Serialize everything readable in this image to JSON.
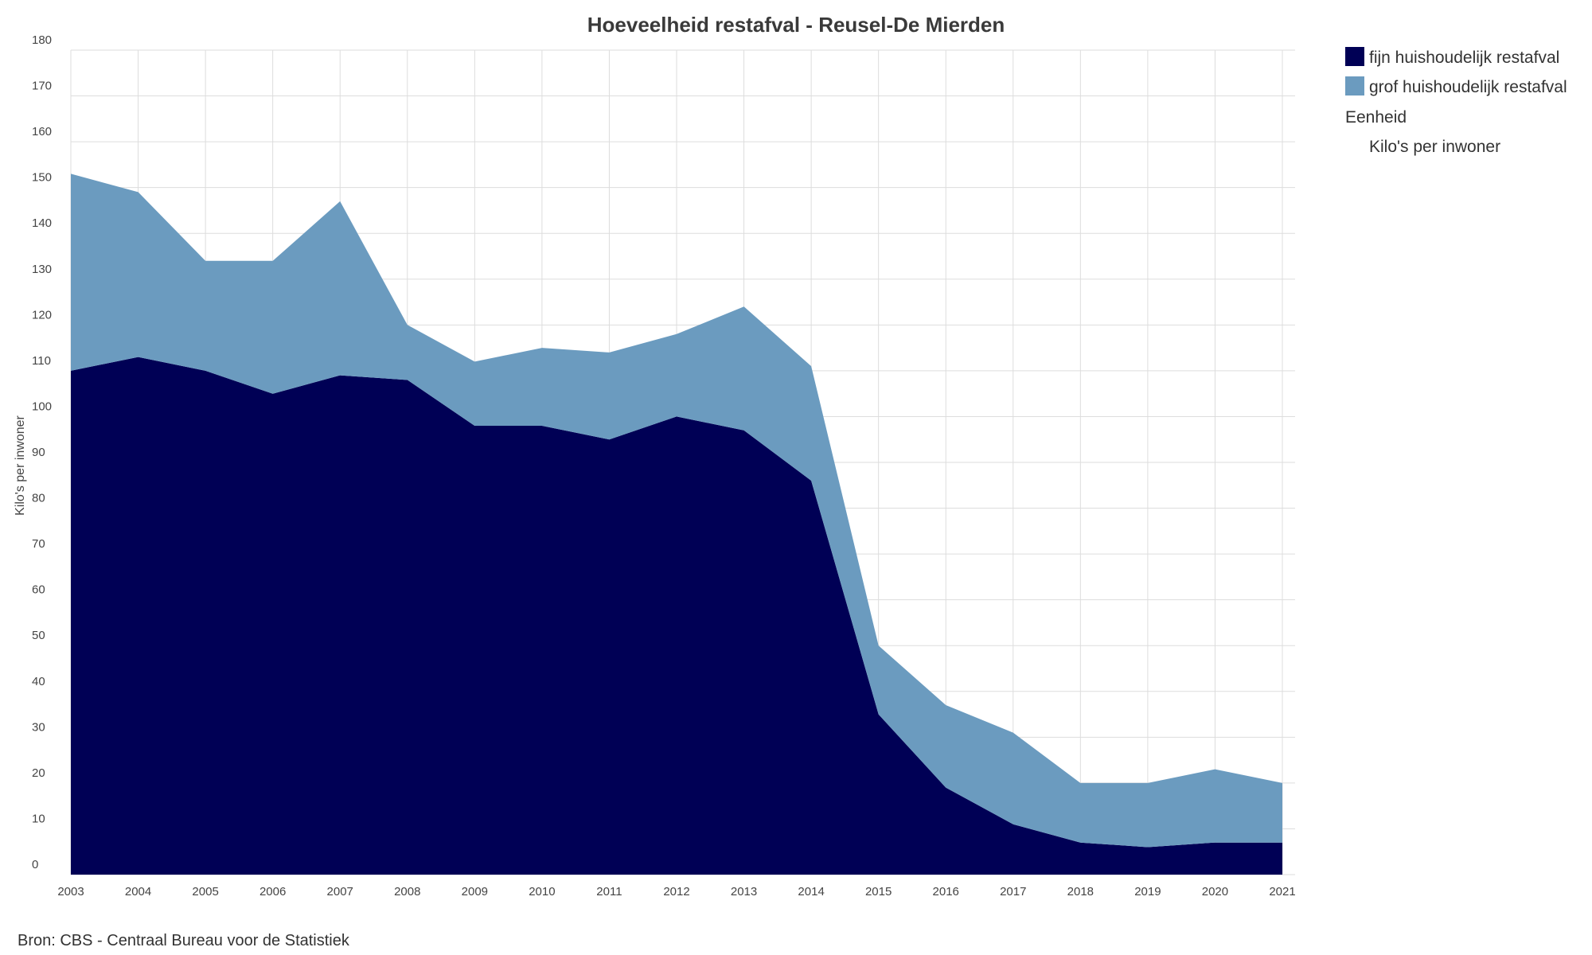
{
  "chart_data": {
    "type": "area",
    "stacked": true,
    "title": "Hoeveelheid restafval - Reusel-De Mierden",
    "ylabel": "Kilo's per inwoner",
    "xlabel": "",
    "ylim": [
      0,
      180
    ],
    "yticks": [
      0,
      10,
      20,
      30,
      40,
      50,
      60,
      70,
      80,
      90,
      100,
      110,
      120,
      130,
      140,
      150,
      160,
      170,
      180
    ],
    "grid": true,
    "legend_position": "right",
    "x": [
      "2003",
      "2004",
      "2005",
      "2006",
      "2007",
      "2008",
      "2009",
      "2010",
      "2011",
      "2012",
      "2013",
      "2014",
      "2015",
      "2016",
      "2017",
      "2018",
      "2019",
      "2020",
      "2021"
    ],
    "series": [
      {
        "name": "fijn huishoudelijk restafval",
        "color": "#000055",
        "values": [
          110,
          113,
          110,
          105,
          109,
          108,
          98,
          98,
          95,
          100,
          97,
          86,
          35,
          19,
          11,
          7,
          6,
          7,
          7
        ]
      },
      {
        "name": "grof huishoudelijk restafval",
        "color": "#6b9bbf",
        "values": [
          43,
          36,
          24,
          29,
          38,
          12,
          14,
          17,
          19,
          18,
          27,
          25,
          15,
          18,
          20,
          13,
          14,
          16,
          13
        ]
      }
    ],
    "legend_extra": {
      "heading": "Eenheid",
      "unit": "Kilo's per inwoner"
    },
    "source": "Bron: CBS - Centraal Bureau voor de Statistiek"
  }
}
